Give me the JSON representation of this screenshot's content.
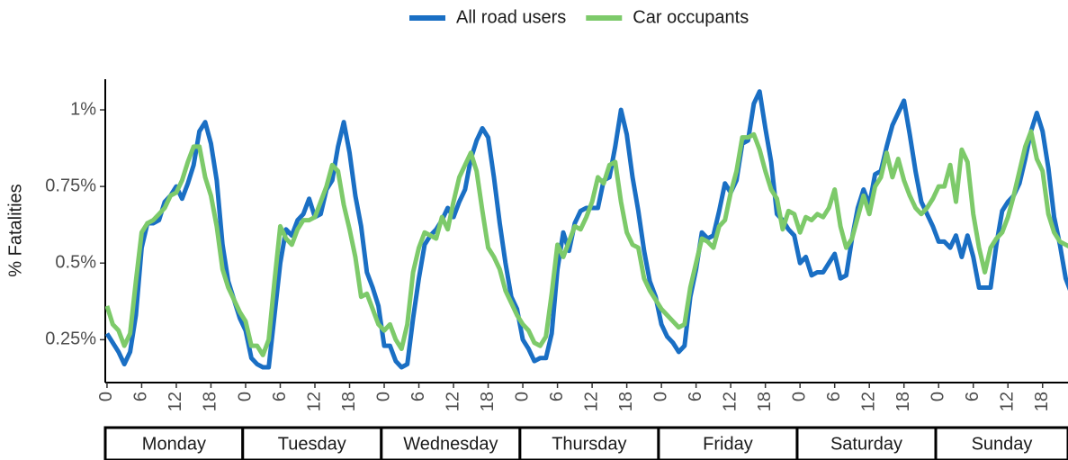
{
  "chart_data": {
    "type": "line",
    "y_label": "% Fatalities",
    "days": [
      "Monday",
      "Tuesday",
      "Wednesday",
      "Thursday",
      "Friday",
      "Saturday",
      "Sunday"
    ],
    "hour_ticks": [
      0,
      6,
      12,
      18
    ],
    "xlim": [
      -0.3,
      166.4
    ],
    "ylim": [
      0.11,
      1.1
    ],
    "yticks": [
      {
        "value": 0.25,
        "label": "0.25%"
      },
      {
        "value": 0.5,
        "label": "0.5%"
      },
      {
        "value": 0.75,
        "label": "0.75%"
      },
      {
        "value": 1,
        "label": "1%"
      }
    ],
    "series": [
      {
        "name": "All road users",
        "color": "#1a6fc4",
        "values": [
          [
            0.27,
            0.24,
            0.21,
            0.17,
            0.21,
            0.33,
            0.55,
            0.63,
            0.63,
            0.64,
            0.7,
            0.72,
            0.75,
            0.71,
            0.76,
            0.82,
            0.93,
            0.96,
            0.89,
            0.77,
            0.56,
            0.44,
            0.38,
            0.32
          ],
          [
            0.28,
            0.19,
            0.17,
            0.16,
            0.16,
            0.33,
            0.5,
            0.61,
            0.59,
            0.64,
            0.66,
            0.71,
            0.65,
            0.66,
            0.74,
            0.77,
            0.88,
            0.96,
            0.86,
            0.72,
            0.62,
            0.47,
            0.42,
            0.36
          ],
          [
            0.23,
            0.23,
            0.18,
            0.16,
            0.17,
            0.32,
            0.45,
            0.56,
            0.59,
            0.61,
            0.64,
            0.68,
            0.65,
            0.7,
            0.74,
            0.84,
            0.9,
            0.94,
            0.91,
            0.78,
            0.63,
            0.5,
            0.39,
            0.35
          ],
          [
            0.25,
            0.22,
            0.18,
            0.19,
            0.19,
            0.27,
            0.48,
            0.6,
            0.54,
            0.63,
            0.67,
            0.68,
            0.68,
            0.68,
            0.77,
            0.78,
            0.88,
            1.0,
            0.92,
            0.78,
            0.67,
            0.54,
            0.44,
            0.39
          ],
          [
            0.3,
            0.26,
            0.24,
            0.21,
            0.23,
            0.39,
            0.48,
            0.6,
            0.58,
            0.59,
            0.67,
            0.76,
            0.73,
            0.77,
            0.89,
            0.9,
            1.02,
            1.06,
            0.94,
            0.83,
            0.66,
            0.64,
            0.61,
            0.59
          ],
          [
            0.5,
            0.52,
            0.46,
            0.47,
            0.47,
            0.5,
            0.53,
            0.45,
            0.46,
            0.58,
            0.68,
            0.74,
            0.69,
            0.79,
            0.8,
            0.88,
            0.95,
            0.99,
            1.03,
            0.92,
            0.8,
            0.7,
            0.66,
            0.62
          ],
          [
            0.57,
            0.57,
            0.55,
            0.59,
            0.52,
            0.59,
            0.52,
            0.42,
            0.42,
            0.42,
            0.56,
            0.67,
            0.7,
            0.72,
            0.76,
            0.84,
            0.93,
            0.99,
            0.93,
            0.81,
            0.65,
            0.56,
            0.45,
            0.4
          ]
        ]
      },
      {
        "name": "Car occupants",
        "color": "#7dca6a",
        "values": [
          [
            0.36,
            0.3,
            0.28,
            0.23,
            0.27,
            0.44,
            0.6,
            0.63,
            0.64,
            0.66,
            0.68,
            0.72,
            0.73,
            0.77,
            0.83,
            0.88,
            0.88,
            0.78,
            0.72,
            0.62,
            0.48,
            0.42,
            0.38,
            0.34
          ],
          [
            0.31,
            0.23,
            0.23,
            0.2,
            0.25,
            0.44,
            0.62,
            0.58,
            0.56,
            0.61,
            0.64,
            0.64,
            0.65,
            0.7,
            0.75,
            0.82,
            0.8,
            0.69,
            0.61,
            0.52,
            0.39,
            0.4,
            0.35,
            0.3
          ],
          [
            0.28,
            0.3,
            0.25,
            0.22,
            0.3,
            0.47,
            0.55,
            0.6,
            0.59,
            0.58,
            0.65,
            0.61,
            0.7,
            0.78,
            0.82,
            0.86,
            0.8,
            0.67,
            0.55,
            0.52,
            0.48,
            0.41,
            0.37,
            0.33
          ],
          [
            0.3,
            0.28,
            0.24,
            0.23,
            0.26,
            0.4,
            0.56,
            0.52,
            0.57,
            0.62,
            0.61,
            0.65,
            0.7,
            0.78,
            0.76,
            0.82,
            0.83,
            0.7,
            0.6,
            0.56,
            0.55,
            0.45,
            0.41,
            0.38
          ],
          [
            0.35,
            0.33,
            0.31,
            0.29,
            0.3,
            0.42,
            0.5,
            0.58,
            0.57,
            0.55,
            0.62,
            0.64,
            0.73,
            0.8,
            0.91,
            0.91,
            0.92,
            0.87,
            0.8,
            0.74,
            0.71,
            0.61,
            0.67,
            0.66
          ],
          [
            0.6,
            0.65,
            0.64,
            0.66,
            0.65,
            0.68,
            0.74,
            0.62,
            0.55,
            0.58,
            0.65,
            0.72,
            0.66,
            0.75,
            0.78,
            0.86,
            0.78,
            0.84,
            0.77,
            0.72,
            0.68,
            0.66,
            0.68,
            0.71
          ],
          [
            0.75,
            0.75,
            0.82,
            0.7,
            0.87,
            0.83,
            0.66,
            0.55,
            0.47,
            0.55,
            0.58,
            0.6,
            0.65,
            0.72,
            0.8,
            0.88,
            0.93,
            0.84,
            0.8,
            0.66,
            0.6,
            0.57,
            0.56,
            0.55
          ]
        ]
      }
    ]
  }
}
